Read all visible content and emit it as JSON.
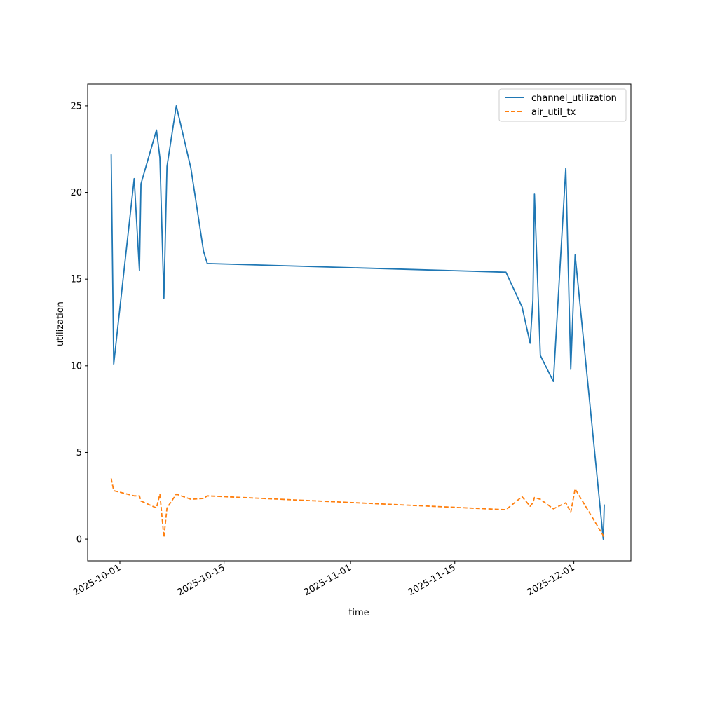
{
  "chart_data": {
    "type": "line",
    "title": "",
    "xlabel": "time",
    "ylabel": "utilization",
    "x_ticks": [
      "2025-10-01",
      "2025-10-15",
      "2025-11-01",
      "2025-11-15",
      "2025-12-01"
    ],
    "y_ticks": [
      0,
      5,
      10,
      15,
      20,
      25
    ],
    "xlim": [
      "2025-09-26T16:00",
      "2025-12-08T16:00"
    ],
    "ylim": [
      -1.25,
      26.25
    ],
    "grid": false,
    "legend_position": "top-right",
    "series": [
      {
        "name": "channel_utilization",
        "color": "#1f77b4",
        "style": "solid",
        "x": [
          "2025-09-29T20:00",
          "2025-09-30T04:00",
          "2025-10-02T22:00",
          "2025-10-03T15:00",
          "2025-10-03T20:00",
          "2025-10-05T22:00",
          "2025-10-06T09:00",
          "2025-10-06T22:00",
          "2025-10-07T08:00",
          "2025-10-08T14:00",
          "2025-10-10T13:00",
          "2025-10-12T06:00",
          "2025-10-12T18:00",
          "2025-11-21T21:00",
          "2025-11-24T01:00",
          "2025-11-25T03:00",
          "2025-11-25T12:00",
          "2025-11-25T17:00",
          "2025-11-26T12:00",
          "2025-11-28T06:00",
          "2025-11-29T22:00",
          "2025-11-30T14:00",
          "2025-12-01T04:00",
          "2025-12-04T23:00",
          "2025-12-05T02:00"
        ],
        "y": [
          22.2,
          10.1,
          20.8,
          15.5,
          20.5,
          23.6,
          22.0,
          13.9,
          21.5,
          25.0,
          21.4,
          16.6,
          15.9,
          15.4,
          13.4,
          11.3,
          13.8,
          19.9,
          10.6,
          9.1,
          21.4,
          9.8,
          16.4,
          0.0,
          2.0
        ]
      },
      {
        "name": "air_util_tx",
        "color": "#ff7f0e",
        "style": "dashed",
        "x": [
          "2025-09-29T20:00",
          "2025-09-30T04:00",
          "2025-10-02T22:00",
          "2025-10-03T15:00",
          "2025-10-03T20:00",
          "2025-10-05T22:00",
          "2025-10-06T09:00",
          "2025-10-06T22:00",
          "2025-10-07T08:00",
          "2025-10-08T14:00",
          "2025-10-10T13:00",
          "2025-10-12T06:00",
          "2025-10-12T18:00",
          "2025-11-21T21:00",
          "2025-11-24T01:00",
          "2025-11-25T03:00",
          "2025-11-25T12:00",
          "2025-11-25T17:00",
          "2025-11-26T12:00",
          "2025-11-28T06:00",
          "2025-11-29T22:00",
          "2025-11-30T14:00",
          "2025-12-01T04:00",
          "2025-12-04T23:00",
          "2025-12-05T02:00"
        ],
        "y": [
          3.5,
          2.8,
          2.5,
          2.5,
          2.2,
          1.8,
          2.6,
          0.1,
          1.8,
          2.6,
          2.3,
          2.35,
          2.5,
          1.7,
          2.45,
          1.9,
          2.1,
          2.4,
          2.3,
          1.75,
          2.1,
          1.55,
          2.9,
          0.2,
          0.1
        ]
      }
    ]
  }
}
